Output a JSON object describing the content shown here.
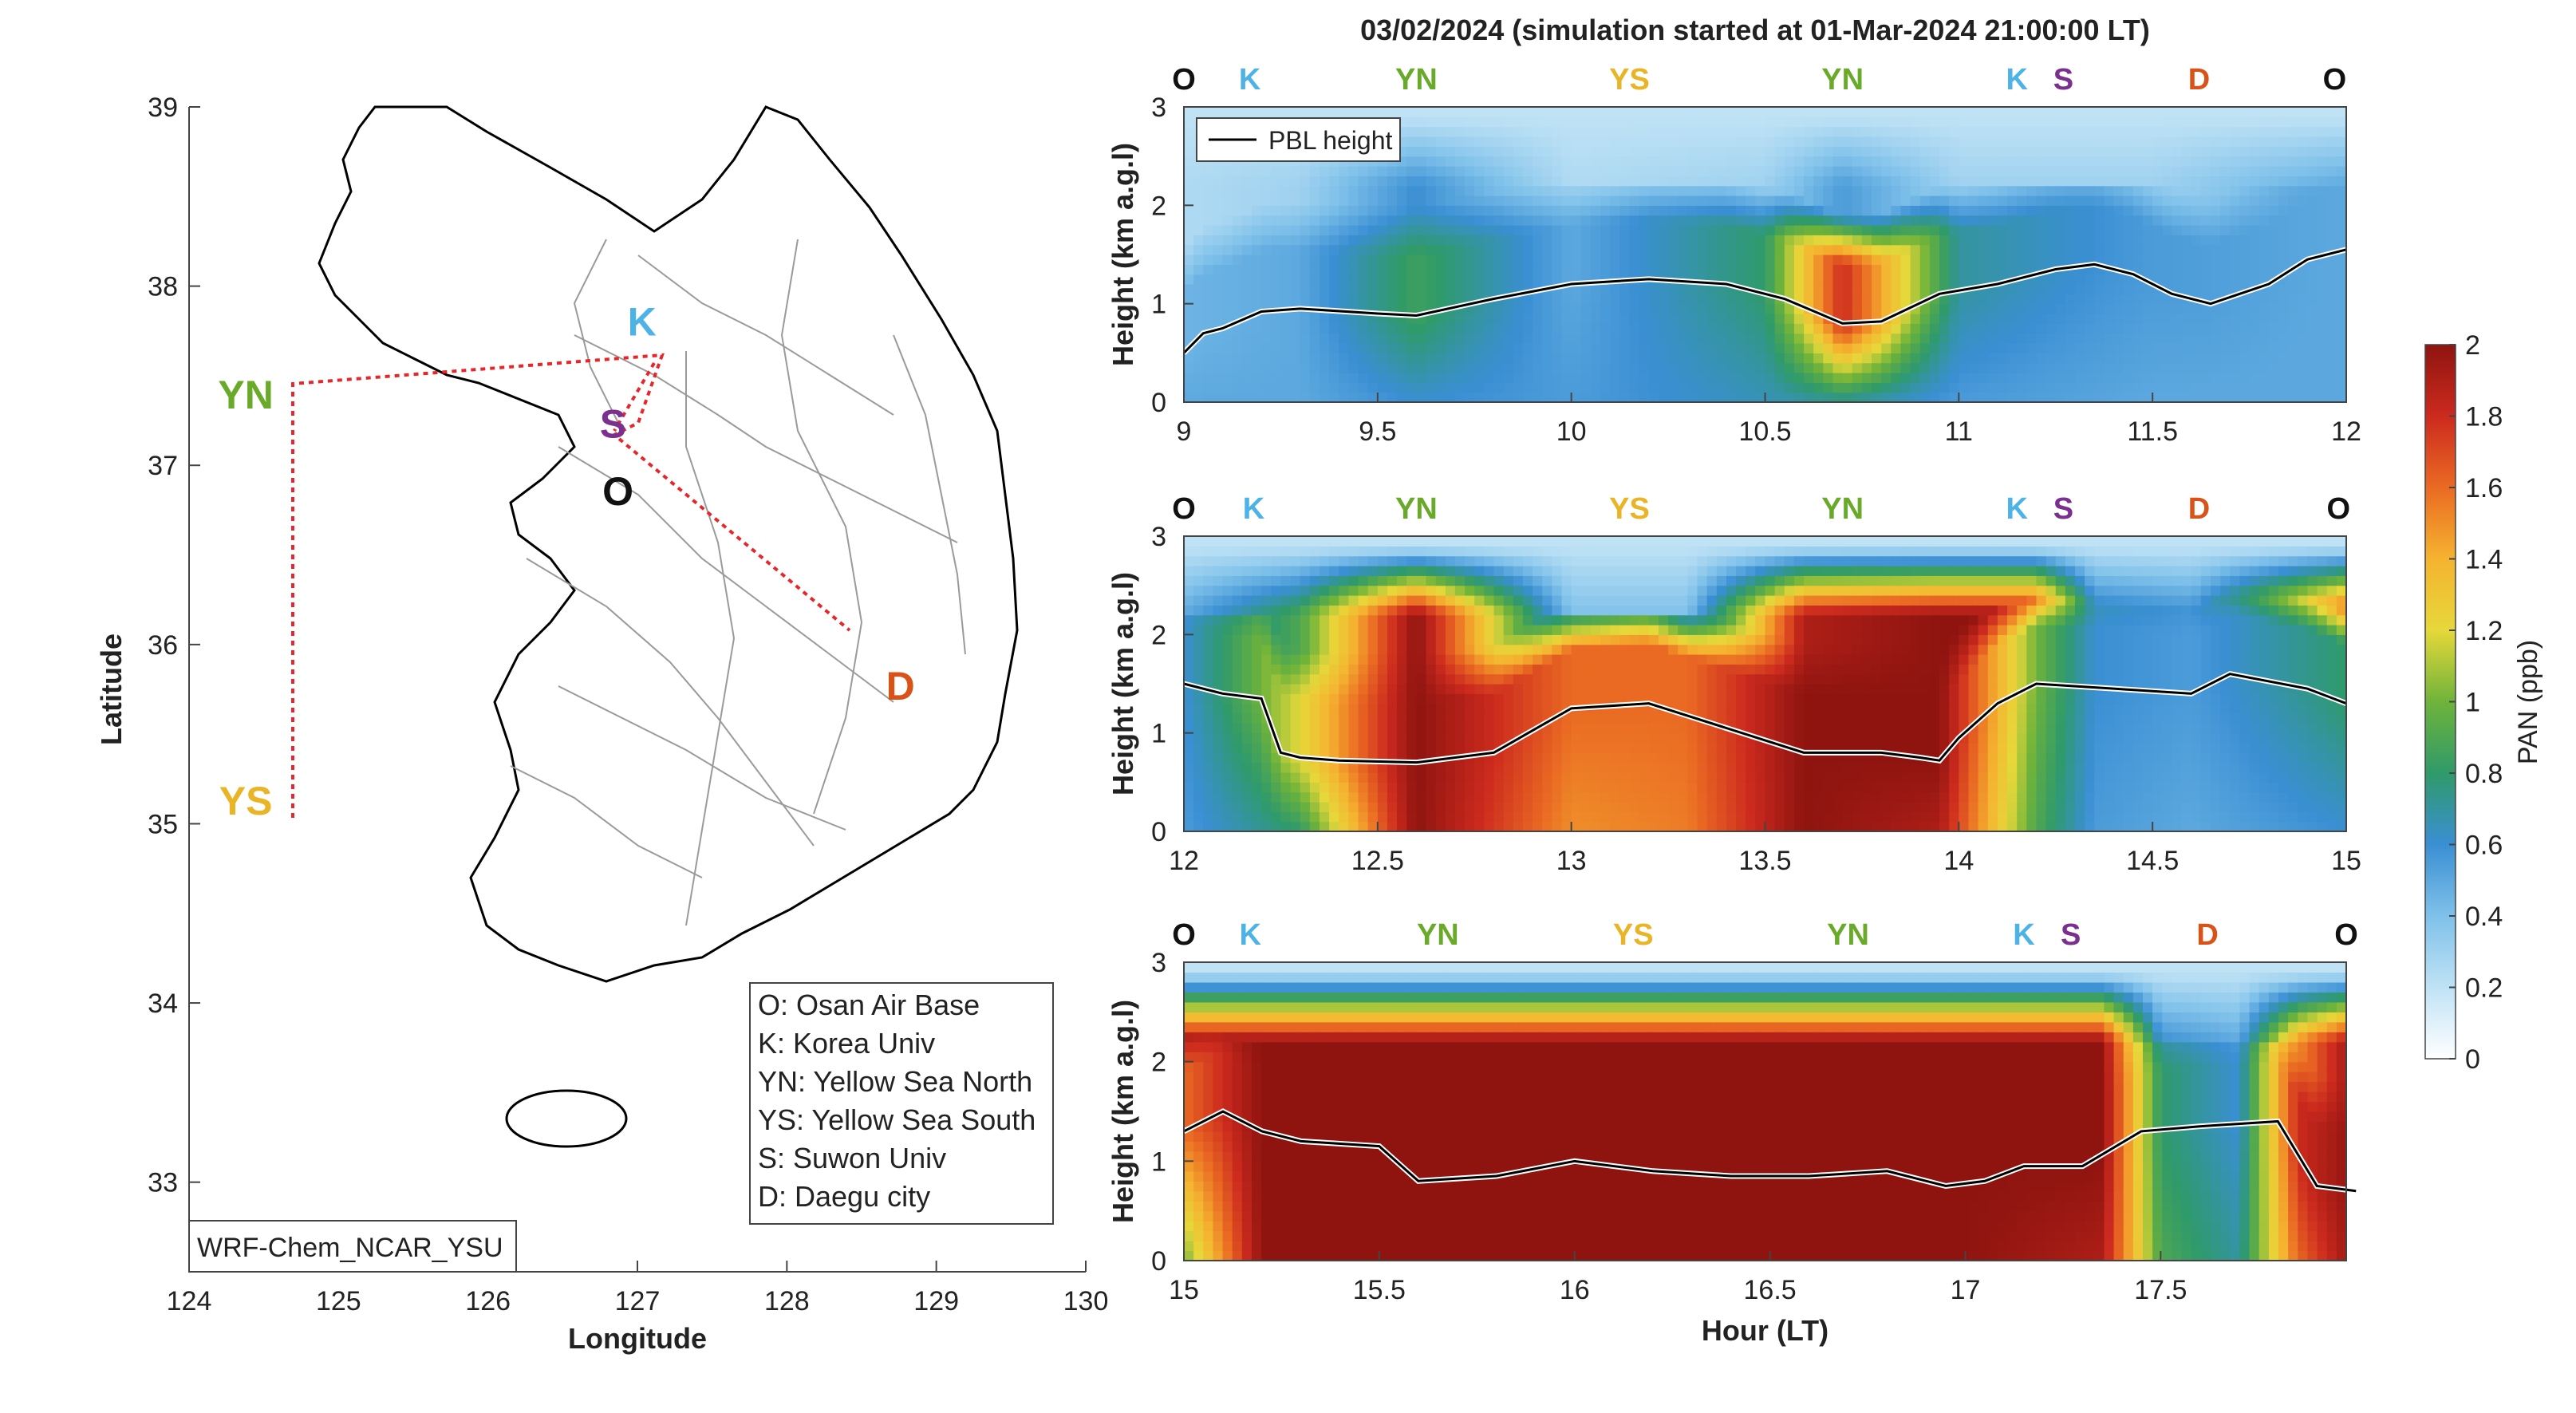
{
  "figure": {
    "title": "03/02/2024 (simulation started at 01-Mar-2024 21:00:00 LT)"
  },
  "colors": {
    "O": "#111111",
    "K": "#4db3e6",
    "YN": "#6aaa2a",
    "YS": "#e9b527",
    "S": "#7b2f8e",
    "D": "#d95319",
    "route": "#e8262a",
    "pbl": "#000000"
  },
  "map": {
    "xlabel": "Longitude",
    "ylabel": "Latitude",
    "xlim": [
      124,
      130
    ],
    "ylim": [
      32.5,
      39
    ],
    "xticks": [
      "124",
      "125",
      "126",
      "127",
      "128",
      "129",
      "130"
    ],
    "yticks": [
      "33",
      "34",
      "35",
      "36",
      "37",
      "38",
      "39"
    ],
    "model_label": "WRF-Chem_NCAR_YSU",
    "sites": [
      {
        "code": "YN",
        "lon": 124.7,
        "lat": 37.45
      },
      {
        "code": "YS",
        "lon": 124.7,
        "lat": 35.05
      },
      {
        "code": "K",
        "lon": 127.03,
        "lat": 37.59
      },
      {
        "code": "S",
        "lon": 126.97,
        "lat": 37.28
      },
      {
        "code": "O",
        "lon": 127.03,
        "lat": 37.09
      },
      {
        "code": "D",
        "lon": 128.6,
        "lat": 35.87
      }
    ],
    "site_labels": [
      {
        "code": "YN",
        "text": "YN"
      },
      {
        "code": "YS",
        "text": "YS"
      },
      {
        "code": "K",
        "text": "K"
      },
      {
        "code": "S",
        "text": "S"
      },
      {
        "code": "O",
        "text": "O"
      },
      {
        "code": "D",
        "text": "D"
      }
    ],
    "legend": [
      "O: Osan Air Base",
      "K: Korea Univ",
      "YN: Yellow Sea North",
      "YS: Yellow Sea South",
      "S: Suwon Univ",
      "D: Daegu city"
    ]
  },
  "panels": {
    "ylabel": "Height (km a.g.l)",
    "xlabel": "Hour (LT)",
    "pbl_legend": "PBL height",
    "site_sequence": [
      "O",
      "K",
      "YN",
      "YS",
      "YN",
      "K",
      "S",
      "D",
      "O"
    ]
  },
  "colorbar": {
    "label": "PAN (ppb)",
    "ticks": [
      "0",
      "0.2",
      "0.4",
      "0.6",
      "0.8",
      "1",
      "1.2",
      "1.4",
      "1.6",
      "1.8",
      "2"
    ]
  },
  "chart_data": [
    {
      "type": "heatmap",
      "title": "03/02/2024 (simulation started at 01-Mar-2024 21:00:00 LT)",
      "ylabel": "Height (km a.g.l)",
      "xlim": [
        9,
        12
      ],
      "ylim": [
        0,
        3
      ],
      "xticks": [
        "9",
        "9.5",
        "10",
        "10.5",
        "11",
        "11.5",
        "12"
      ],
      "yticks": [
        "0",
        "1",
        "2",
        "3"
      ],
      "site_positions": [
        9.0,
        9.17,
        9.6,
        10.15,
        10.7,
        11.15,
        11.27,
        11.62,
        11.97
      ],
      "pbl_height": {
        "x": [
          9.0,
          9.05,
          9.1,
          9.2,
          9.3,
          9.5,
          9.6,
          9.8,
          10.0,
          10.2,
          10.4,
          10.55,
          10.7,
          10.8,
          10.95,
          11.1,
          11.25,
          11.35,
          11.45,
          11.55,
          11.65,
          11.8,
          11.9,
          12.0
        ],
        "y": [
          0.5,
          0.7,
          0.75,
          0.92,
          0.95,
          0.9,
          0.88,
          1.05,
          1.2,
          1.25,
          1.2,
          1.05,
          0.8,
          0.82,
          1.1,
          1.2,
          1.35,
          1.4,
          1.3,
          1.1,
          1.0,
          1.2,
          1.45,
          1.55
        ]
      },
      "pan_ppb": {
        "x": [
          9.0,
          9.3,
          9.6,
          10.0,
          10.5,
          10.7,
          11.0,
          11.5,
          12.0
        ],
        "top_ppb": [
          0.25,
          0.3,
          0.6,
          0.25,
          0.3,
          0.55,
          0.3,
          0.3,
          0.5
        ],
        "mid_ppb": [
          0.45,
          0.5,
          0.85,
          0.5,
          0.8,
          1.8,
          0.7,
          0.55,
          0.5
        ],
        "low_ppb": [
          0.5,
          0.5,
          0.6,
          0.55,
          0.65,
          0.7,
          0.55,
          0.5,
          0.5
        ]
      }
    },
    {
      "type": "heatmap",
      "ylabel": "Height (km a.g.l)",
      "xlim": [
        12,
        15
      ],
      "ylim": [
        0,
        3
      ],
      "xticks": [
        "12",
        "12.5",
        "13",
        "13.5",
        "14",
        "14.5",
        "15"
      ],
      "yticks": [
        "0",
        "1",
        "2",
        "3"
      ],
      "site_positions": [
        12.0,
        12.18,
        12.6,
        13.15,
        13.7,
        14.15,
        14.27,
        14.62,
        14.98
      ],
      "pbl_height": {
        "x": [
          12.0,
          12.1,
          12.2,
          12.25,
          12.3,
          12.4,
          12.6,
          12.8,
          13.0,
          13.2,
          13.4,
          13.6,
          13.8,
          13.9,
          13.95,
          14.0,
          14.1,
          14.2,
          14.4,
          14.6,
          14.7,
          14.9,
          15.0
        ],
        "y": [
          1.5,
          1.4,
          1.35,
          0.8,
          0.75,
          0.72,
          0.7,
          0.8,
          1.25,
          1.3,
          1.05,
          0.8,
          0.8,
          0.75,
          0.72,
          0.95,
          1.3,
          1.5,
          1.45,
          1.4,
          1.6,
          1.45,
          1.3
        ]
      },
      "pan_ppb": {
        "x": [
          12.0,
          12.3,
          12.6,
          13.0,
          13.3,
          13.6,
          13.95,
          14.2,
          14.35,
          14.6,
          15.0
        ],
        "top_ppb": [
          0.5,
          0.9,
          2.0,
          0.4,
          0.4,
          1.9,
          2.0,
          2.0,
          0.7,
          0.6,
          1.8
        ],
        "mid_ppb": [
          0.6,
          1.2,
          2.0,
          1.6,
          1.6,
          2.0,
          2.0,
          1.0,
          0.6,
          0.55,
          0.8
        ],
        "low_ppb": [
          0.55,
          0.8,
          2.0,
          1.5,
          1.55,
          2.0,
          1.9,
          0.9,
          0.55,
          0.5,
          0.6
        ]
      }
    },
    {
      "type": "heatmap",
      "ylabel": "Height (km a.g.l)",
      "xlabel": "Hour (LT)",
      "xlim": [
        15,
        18
      ],
      "ylim": [
        0,
        3
      ],
      "xticks": [
        "15",
        "15.5",
        "16",
        "16.5",
        "17",
        "17.5"
      ],
      "yticks": [
        "0",
        "1",
        "2",
        "3"
      ],
      "site_positions": [
        15.0,
        15.17,
        15.65,
        16.15,
        16.7,
        17.15,
        17.27,
        17.62,
        17.98
      ],
      "pbl_height": {
        "x": [
          15.0,
          15.1,
          15.2,
          15.3,
          15.5,
          15.6,
          15.8,
          16.0,
          16.2,
          16.4,
          16.6,
          16.8,
          16.95,
          17.05,
          17.15,
          17.3,
          17.45,
          17.6,
          17.8,
          17.9,
          18.0
        ],
        "y": [
          1.3,
          1.5,
          1.3,
          1.2,
          1.15,
          0.8,
          0.85,
          1.0,
          0.9,
          0.85,
          0.85,
          0.9,
          0.75,
          0.8,
          0.95,
          0.95,
          1.3,
          1.35,
          1.4,
          0.75,
          0.7
        ]
      },
      "pan_ppb": {
        "x": [
          15.0,
          15.2,
          15.5,
          16.0,
          16.5,
          17.0,
          17.35,
          17.5,
          17.7,
          17.85,
          18.0
        ],
        "top_ppb": [
          2.0,
          2.0,
          2.0,
          2.0,
          2.0,
          2.0,
          2.0,
          0.6,
          0.5,
          1.5,
          2.0
        ],
        "mid_ppb": [
          1.6,
          2.0,
          2.0,
          2.0,
          2.0,
          2.0,
          2.0,
          0.8,
          0.6,
          1.8,
          2.0
        ],
        "low_ppb": [
          1.0,
          2.0,
          2.0,
          2.0,
          2.0,
          2.0,
          1.9,
          0.9,
          0.7,
          1.6,
          2.0
        ]
      }
    }
  ]
}
